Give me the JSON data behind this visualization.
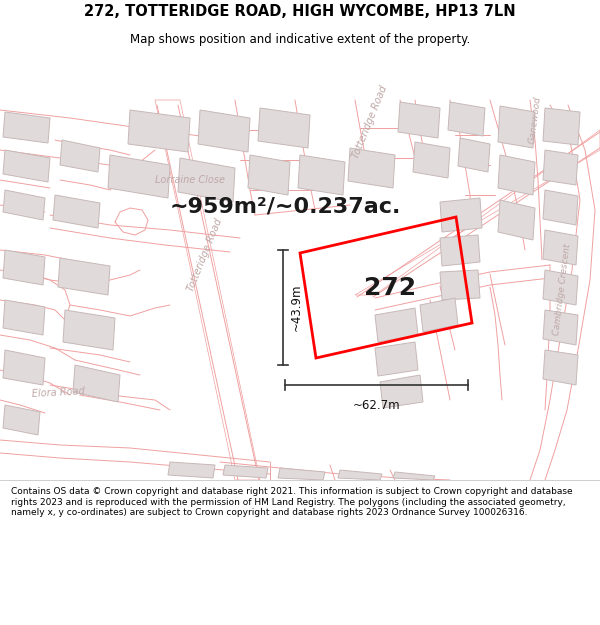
{
  "title_line1": "272, TOTTERIDGE ROAD, HIGH WYCOMBE, HP13 7LN",
  "title_line2": "Map shows position and indicative extent of the property.",
  "area_text": "~959m²/~0.237ac.",
  "label_272": "272",
  "dim_height": "~43.9m",
  "dim_width": "~62.7m",
  "footer": "Contains OS data © Crown copyright and database right 2021. This information is subject to Crown copyright and database rights 2023 and is reproduced with the permission of HM Land Registry. The polygons (including the associated geometry, namely x, y co-ordinates) are subject to Crown copyright and database rights 2023 Ordnance Survey 100026316.",
  "map_bg": "#ffffff",
  "road_line_color": "#f0a0a0",
  "plot_color": "#ff0000",
  "building_fill": "#e0dada",
  "building_outline": "#c8b8b8",
  "title_color": "#000000",
  "footer_color": "#000000",
  "dim_color": "#333333",
  "road_label_color": "#c0a8a8",
  "map_line_lw": 0.6,
  "title_fontsize": 10.5,
  "subtitle_fontsize": 8.5,
  "area_fontsize": 16,
  "label_fontsize": 18,
  "dim_fontsize": 8.5,
  "footer_fontsize": 6.5
}
